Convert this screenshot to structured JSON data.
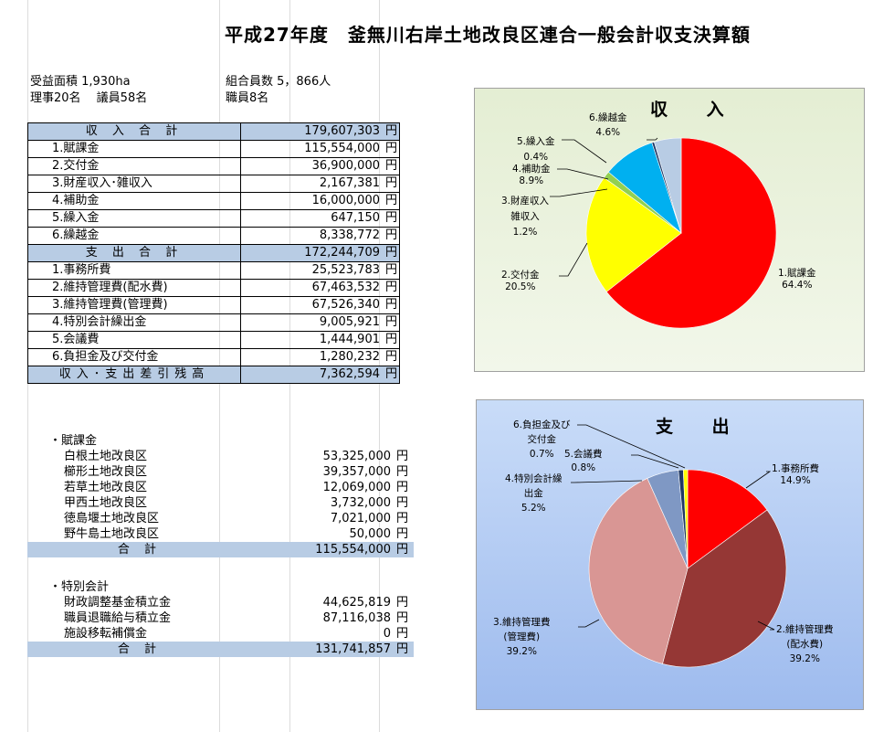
{
  "title": "平成27年度　釜無川右岸土地改良区連合一般会計収支決算額",
  "info": {
    "area": "受益面積 1,930ha",
    "members": "組合員数 5，866人",
    "directors": "理事20名　 議員58名",
    "staff": "職員8名"
  },
  "yen": "円",
  "finance": [
    {
      "label": "収 入 合 計",
      "value": "179,607,303",
      "total": true
    },
    {
      "label": "1.賦課金",
      "value": "115,554,000"
    },
    {
      "label": "2.交付金",
      "value": "36,900,000"
    },
    {
      "label": "3.財産収入･雑収入",
      "value": "2,167,381"
    },
    {
      "label": "4.補助金",
      "value": "16,000,000"
    },
    {
      "label": "5.繰入金",
      "value": "647,150"
    },
    {
      "label": "6.繰越金",
      "value": "8,338,772"
    },
    {
      "label": "支 出 合 計",
      "value": "172,244,709",
      "total": true
    },
    {
      "label": "1.事務所費",
      "value": "25,523,783"
    },
    {
      "label": "2.維持管理費(配水費)",
      "value": "67,463,532"
    },
    {
      "label": "3.維持管理費(管理費)",
      "value": "67,526,340"
    },
    {
      "label": "4.特別会計繰出金",
      "value": "9,005,921"
    },
    {
      "label": "5.会議費",
      "value": "1,444,901"
    },
    {
      "label": "6.負担金及び交付金",
      "value": "1,280,232"
    },
    {
      "label": "収入･支出差引残高",
      "value": "7,362,594",
      "total": true
    }
  ],
  "fukakin": {
    "heading": "・賦課金",
    "rows": [
      {
        "label": "白根土地改良区",
        "value": "53,325,000"
      },
      {
        "label": "櫛形土地改良区",
        "value": "39,357,000"
      },
      {
        "label": "若草土地改良区",
        "value": "12,069,000"
      },
      {
        "label": "甲西土地改良区",
        "value": "3,732,000"
      },
      {
        "label": "徳島堰土地改良区",
        "value": "7,021,000"
      },
      {
        "label": "野牛島土地改良区",
        "value": "50,000"
      }
    ],
    "total_label": "合 計",
    "total_value": "115,554,000"
  },
  "tokubetsu": {
    "heading": "・特別会計",
    "rows": [
      {
        "label": "財政調整基金積立金",
        "value": "44,625,819"
      },
      {
        "label": "職員退職給与積立金",
        "value": "87,116,038"
      },
      {
        "label": "施設移転補償金",
        "value": "0"
      }
    ],
    "total_label": "合 計",
    "total_value": "131,741,857"
  },
  "chart_data": [
    {
      "type": "pie",
      "title": "収 入",
      "background": "#eaf1dd",
      "slices": [
        {
          "name": "1.賦課金",
          "percent": "64.4%",
          "value": 64.4,
          "color": "#ff0000"
        },
        {
          "name": "2.交付金",
          "percent": "20.5%",
          "value": 20.5,
          "color": "#ffff00"
        },
        {
          "name": "3.財産収入雑収入",
          "percent": "1.2%",
          "value": 1.2,
          "color": "#92d050"
        },
        {
          "name": "4.補助金",
          "percent": "8.9%",
          "value": 8.9,
          "color": "#00b0f0"
        },
        {
          "name": "5.繰入金",
          "percent": "0.4%",
          "value": 0.4,
          "color": "#1f3864"
        },
        {
          "name": "6.繰越金",
          "percent": "4.6%",
          "value": 4.6,
          "color": "#b8cce4"
        }
      ]
    },
    {
      "type": "pie",
      "title": "支 出",
      "background": "#c5d9f1",
      "slices": [
        {
          "name": "1.事務所費",
          "percent": "14.9%",
          "value": 14.9,
          "color": "#ff0000"
        },
        {
          "name": "2.維持管理費(配水費)",
          "percent": "39.2%",
          "value": 39.2,
          "color": "#953735"
        },
        {
          "name": "3.維持管理費(管理費)",
          "percent": "39.2%",
          "value": 39.2,
          "color": "#d99694"
        },
        {
          "name": "4.特別会計繰出金",
          "percent": "5.2%",
          "value": 5.2,
          "color": "#7f98c4"
        },
        {
          "name": "5.会議費",
          "percent": "0.8%",
          "value": 0.8,
          "color": "#1f3864"
        },
        {
          "name": "6.負担金及び交付金",
          "percent": "0.7%",
          "value": 0.7,
          "color": "#ffff00"
        }
      ]
    }
  ]
}
